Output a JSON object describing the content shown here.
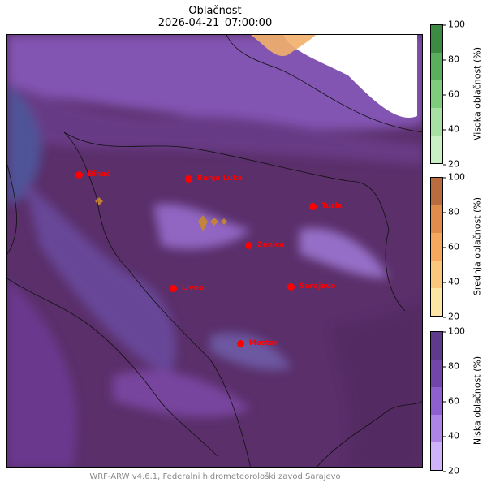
{
  "title": "Oblačnost",
  "timestamp": "2026-04-21_07:00:00",
  "footer": "WRF-ARW v4.6.1, Federalni hidrometeorološki zavod Sarajevo",
  "cities": [
    {
      "name": "Bihać"
    },
    {
      "name": "Banja Luka"
    },
    {
      "name": "Tuzla"
    },
    {
      "name": "Zenica"
    },
    {
      "name": "Livno"
    },
    {
      "name": "Sarajevo"
    },
    {
      "name": "Mostar"
    }
  ],
  "colorbars": [
    {
      "label": "Visoka oblačnost (%)",
      "ticks": [
        "100",
        "80",
        "60",
        "40",
        "20"
      ],
      "colors": [
        "#3d8a43",
        "#5aaf5f",
        "#7fcc7d",
        "#a7e0a2",
        "#c9f0c4"
      ]
    },
    {
      "label": "Srednja oblačnost (%)",
      "ticks": [
        "100",
        "80",
        "60",
        "40",
        "20"
      ],
      "colors": [
        "#b96d3f",
        "#e08c4c",
        "#f5a85e",
        "#fbc77c",
        "#fde6a3"
      ]
    },
    {
      "label": "Niska oblačnost (%)",
      "ticks": [
        "100",
        "80",
        "60",
        "40",
        "20"
      ],
      "colors": [
        "#5e3a8c",
        "#7245ad",
        "#8e5fce",
        "#ae84e6",
        "#cfb3f8"
      ]
    }
  ]
}
